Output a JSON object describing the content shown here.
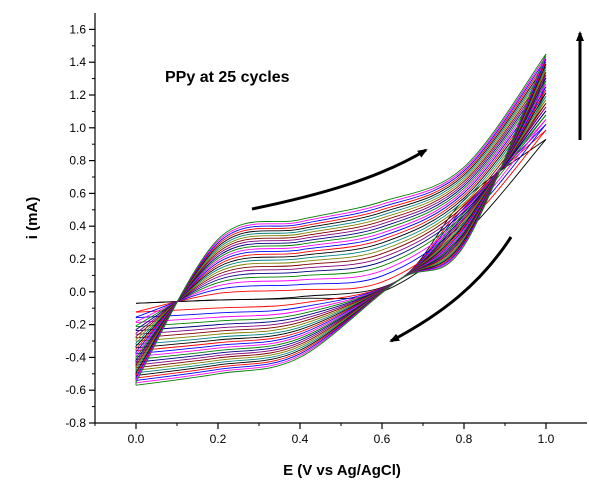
{
  "chart_data": {
    "type": "line",
    "title": "",
    "xlabel": "E (V vs Ag/AgCl)",
    "ylabel": "i (mA)",
    "xlim": [
      -0.1,
      1.1
    ],
    "ylim": [
      -0.8,
      1.7
    ],
    "x_ticks": [
      0.0,
      0.2,
      0.4,
      0.6,
      0.8,
      1.0
    ],
    "x_tick_labels": [
      "0.0",
      "0.2",
      "0.4",
      "0.6",
      "0.8",
      "1.0"
    ],
    "y_ticks": [
      -0.8,
      -0.6,
      -0.4,
      -0.2,
      0.0,
      0.2,
      0.4,
      0.6,
      0.8,
      1.0,
      1.2,
      1.4,
      1.6
    ],
    "y_tick_labels": [
      "-0.8",
      "-0.6",
      "-0.4",
      "-0.2",
      "0.0",
      "0.2",
      "0.4",
      "0.6",
      "0.8",
      "1.0",
      "1.2",
      "1.4",
      "1.6"
    ],
    "grid": false,
    "legend": "none",
    "annotation": "PPy at 25 cycles",
    "series_colors": [
      "#000000",
      "#ff0000",
      "#0000ff",
      "#ff00ff",
      "#008000",
      "#000080",
      "#800080",
      "#800000",
      "#808000",
      "#008080"
    ],
    "series": [
      {
        "values_forward": [
          [
            0.0,
            -0.07
          ],
          [
            0.2,
            -0.05
          ],
          [
            0.4,
            -0.04
          ],
          [
            0.6,
            0.0
          ],
          [
            0.8,
            0.35
          ],
          [
            1.0,
            0.93
          ]
        ],
        "values_reverse": [
          [
            1.0,
            0.93
          ],
          [
            0.8,
            0.56
          ],
          [
            0.64,
            0.07
          ],
          [
            0.4,
            -0.03
          ],
          [
            0.2,
            -0.05
          ],
          [
            0.0,
            -0.07
          ]
        ]
      },
      {
        "values_forward": [
          [
            0.0,
            -0.1
          ],
          [
            0.2,
            0.1
          ],
          [
            0.4,
            0.18
          ],
          [
            0.6,
            0.3
          ],
          [
            0.8,
            0.6
          ],
          [
            1.0,
            1.12
          ]
        ],
        "values_reverse": [
          [
            1.0,
            1.12
          ],
          [
            0.8,
            0.45
          ],
          [
            0.64,
            0.07
          ],
          [
            0.4,
            -0.15
          ],
          [
            0.2,
            -0.2
          ],
          [
            0.0,
            -0.3
          ]
        ]
      },
      {
        "values_forward": [
          [
            0.0,
            -0.25
          ],
          [
            0.2,
            0.25
          ],
          [
            0.4,
            0.35
          ],
          [
            0.6,
            0.45
          ],
          [
            0.8,
            0.7
          ],
          [
            1.0,
            1.34
          ]
        ],
        "values_reverse": [
          [
            1.0,
            1.34
          ],
          [
            0.8,
            0.35
          ],
          [
            0.64,
            0.07
          ],
          [
            0.4,
            -0.3
          ],
          [
            0.2,
            -0.4
          ],
          [
            0.0,
            -0.5
          ]
        ]
      },
      {
        "values_forward": [
          [
            0.0,
            -0.55
          ],
          [
            0.2,
            0.32
          ],
          [
            0.4,
            0.44
          ],
          [
            0.6,
            0.55
          ],
          [
            0.8,
            0.76
          ],
          [
            1.0,
            1.45
          ]
        ],
        "values_reverse": [
          [
            1.0,
            1.45
          ],
          [
            0.8,
            0.28
          ],
          [
            0.64,
            0.07
          ],
          [
            0.4,
            -0.4
          ],
          [
            0.2,
            -0.5
          ],
          [
            0.0,
            -0.57
          ]
        ]
      }
    ],
    "arrows": [
      "forward-scan",
      "reverse-scan",
      "vertical-up"
    ]
  }
}
